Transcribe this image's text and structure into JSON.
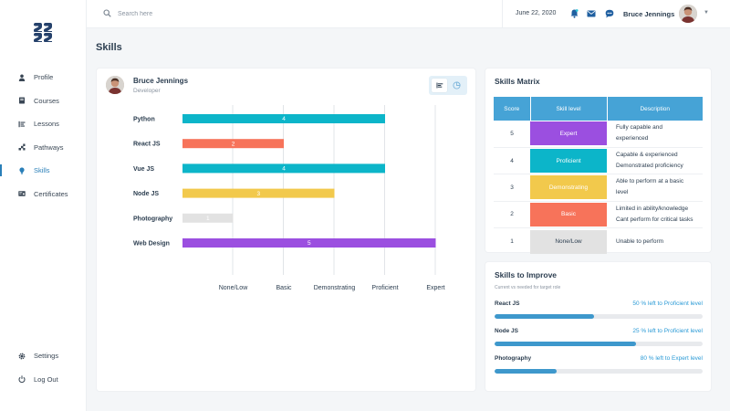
{
  "sidebar": {
    "logo": "logo-icon",
    "items": [
      {
        "label": "Profile",
        "icon": "person-icon",
        "active": false
      },
      {
        "label": "Courses",
        "icon": "book-icon",
        "active": false
      },
      {
        "label": "Lessons",
        "icon": "lessons-icon",
        "active": false
      },
      {
        "label": "Pathways",
        "icon": "pathways-icon",
        "active": false
      },
      {
        "label": "Skills",
        "icon": "bulb-icon",
        "active": true
      },
      {
        "label": "Certificates",
        "icon": "certificate-icon",
        "active": false
      }
    ],
    "bottom_items": [
      {
        "label": "Settings",
        "icon": "gear-icon"
      },
      {
        "label": "Log Out",
        "icon": "power-icon"
      }
    ]
  },
  "topbar": {
    "search_placeholder": "Search here",
    "date": "June 22, 2020",
    "user_name": "Bruce Jennings"
  },
  "page": {
    "title": "Skills"
  },
  "profile": {
    "name": "Bruce Jennings",
    "role": "Developer"
  },
  "chart_data": {
    "type": "bar",
    "orientation": "horizontal",
    "categories": [
      "Python",
      "React JS",
      "Vue JS",
      "Node JS",
      "Photography",
      "Web Design"
    ],
    "values": [
      4,
      2,
      4,
      3,
      1,
      5
    ],
    "colors": [
      "#0cb5c9",
      "#f7735a",
      "#0cb5c9",
      "#f2c94c",
      "#e2e2e2",
      "#9b4fe0"
    ],
    "x_tick_labels": [
      "None/Low",
      "Basic",
      "Demonstrating",
      "Proficient",
      "Expert"
    ],
    "xlim": [
      0,
      5
    ],
    "grid": true,
    "title": "",
    "xlabel": "",
    "ylabel": ""
  },
  "matrix": {
    "title": "Skills Matrix",
    "headers": [
      "Score",
      "Skill level",
      "Description"
    ],
    "rows": [
      {
        "score": "5",
        "level": "Expert",
        "color": "#9b4fe0",
        "text_color": "#ffffff",
        "desc_lines": [
          "Fully capable and",
          "experienced"
        ]
      },
      {
        "score": "4",
        "level": "Proficient",
        "color": "#0cb5c9",
        "text_color": "#ffffff",
        "desc_lines": [
          "Capable & experienced",
          "Demonstrated proficiency"
        ]
      },
      {
        "score": "3",
        "level": "Demonstrating",
        "color": "#f2c94c",
        "text_color": "#ffffff",
        "desc_lines": [
          "Able to perform at a basic",
          "level"
        ]
      },
      {
        "score": "2",
        "level": "Basic",
        "color": "#f7735a",
        "text_color": "#ffffff",
        "desc_lines": [
          "Limited in ability/knowledge",
          "Cant perform for critical tasks"
        ]
      },
      {
        "score": "1",
        "level": "None/Low",
        "color": "#e2e2e2",
        "text_color": "#2c3e50",
        "desc_lines": [
          "Unable to perform"
        ]
      }
    ]
  },
  "improve": {
    "title": "Skills to Improve",
    "subtitle": "Current vs needed for target role",
    "items": [
      {
        "label": "React JS",
        "status": "50 % left to Proficient level",
        "progress": 0.48
      },
      {
        "label": "Node JS",
        "status": "25 % left to Proficient level",
        "progress": 0.68
      },
      {
        "label": "Photography",
        "status": "80 % left to Expert level",
        "progress": 0.3
      }
    ]
  }
}
